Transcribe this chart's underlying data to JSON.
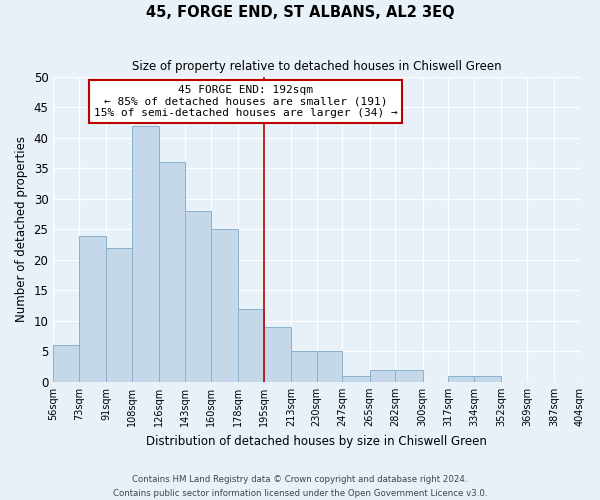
{
  "title": "45, FORGE END, ST ALBANS, AL2 3EQ",
  "subtitle": "Size of property relative to detached houses in Chiswell Green",
  "xlabel": "Distribution of detached houses by size in Chiswell Green",
  "ylabel": "Number of detached properties",
  "bin_edges": [
    56,
    73,
    91,
    108,
    126,
    143,
    160,
    178,
    195,
    213,
    230,
    247,
    265,
    282,
    300,
    317,
    334,
    352,
    369,
    387,
    404
  ],
  "bin_labels": [
    "56sqm",
    "73sqm",
    "91sqm",
    "108sqm",
    "126sqm",
    "143sqm",
    "160sqm",
    "178sqm",
    "195sqm",
    "213sqm",
    "230sqm",
    "247sqm",
    "265sqm",
    "282sqm",
    "300sqm",
    "317sqm",
    "334sqm",
    "352sqm",
    "369sqm",
    "387sqm",
    "404sqm"
  ],
  "counts": [
    6,
    24,
    22,
    42,
    36,
    28,
    25,
    12,
    9,
    5,
    5,
    1,
    2,
    2,
    0,
    1,
    1,
    0,
    0,
    0,
    0
  ],
  "bar_color": "#c5d8ea",
  "bar_edge_color": "#8ab0cc",
  "vline_x": 195,
  "vline_color": "#bb0000",
  "ylim": [
    0,
    50
  ],
  "yticks": [
    0,
    5,
    10,
    15,
    20,
    25,
    30,
    35,
    40,
    45,
    50
  ],
  "annotation_title": "45 FORGE END: 192sqm",
  "annotation_line1": "← 85% of detached houses are smaller (191)",
  "annotation_line2": "15% of semi-detached houses are larger (34) →",
  "annotation_box_color": "#ffffff",
  "annotation_border_color": "#bb0000",
  "footnote1": "Contains HM Land Registry data © Crown copyright and database right 2024.",
  "footnote2": "Contains public sector information licensed under the Open Government Licence v3.0.",
  "background_color": "#e8f0f8"
}
